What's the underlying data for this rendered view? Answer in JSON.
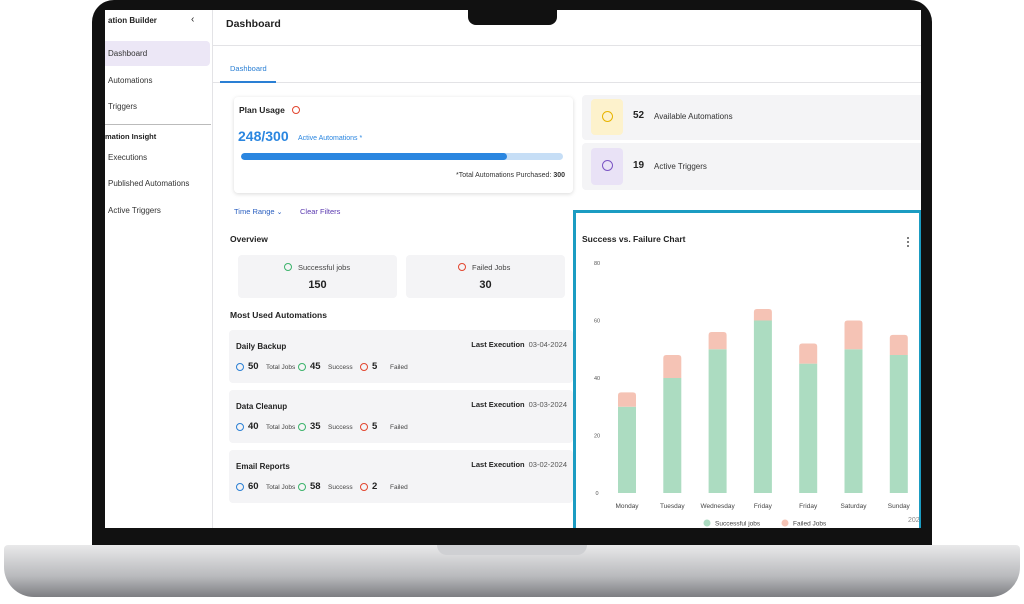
{
  "sidebar": {
    "title": "ation Builder",
    "items": [
      "Dashboard",
      "Automations",
      "Triggers"
    ],
    "section": "mation Insight",
    "section_items": [
      "Executions",
      "Published Automations",
      "Active Triggers"
    ]
  },
  "header": {
    "title": "Dashboard",
    "tab": "Dashboard"
  },
  "plan_usage": {
    "title": "Plan Usage",
    "usage_text": "248/300",
    "used": 248,
    "limit": 300,
    "usage_label": "Active Automations *",
    "purchased_label": "*Total Automations Purchased:",
    "purchased": "300"
  },
  "stats": [
    {
      "value": "52",
      "label": "Available Automations"
    },
    {
      "value": "19",
      "label": "Active Triggers"
    }
  ],
  "filters": {
    "time_range": "Time Range",
    "clear": "Clear Filters"
  },
  "overview": {
    "title": "Overview",
    "cards": [
      {
        "label": "Successful jobs",
        "value": "150"
      },
      {
        "label": "Failed Jobs",
        "value": "30"
      }
    ]
  },
  "most_used": {
    "title": "Most Used Automations",
    "labels": {
      "last_execution": "Last Execution",
      "total": "Total Jobs",
      "success": "Success",
      "failed": "Failed"
    },
    "items": [
      {
        "name": "Daily Backup",
        "date": "03-04-2024",
        "total": "50",
        "success": "45",
        "failed": "5"
      },
      {
        "name": "Data Cleanup",
        "date": "03-03-2024",
        "total": "40",
        "success": "35",
        "failed": "5"
      },
      {
        "name": "Email Reports",
        "date": "03-02-2024",
        "total": "60",
        "success": "58",
        "failed": "2"
      }
    ]
  },
  "chart_data": {
    "type": "bar",
    "stacked": true,
    "title": "Success vs. Failure Chart",
    "categories": [
      "Monday",
      "Tuesday",
      "Wednesday",
      "Friday",
      "Friday",
      "Saturday",
      "Sunday"
    ],
    "series": [
      {
        "name": "Successful jobs",
        "color": "#acdcc1",
        "values": [
          30,
          40,
          50,
          60,
          45,
          50,
          48
        ]
      },
      {
        "name": "Failed Jobs",
        "color": "#f5c3b5",
        "values": [
          5,
          8,
          6,
          4,
          7,
          10,
          7
        ]
      }
    ],
    "ylim": [
      0,
      80
    ],
    "yticks": [
      0,
      20,
      40,
      60,
      80
    ],
    "footnote": "202"
  }
}
